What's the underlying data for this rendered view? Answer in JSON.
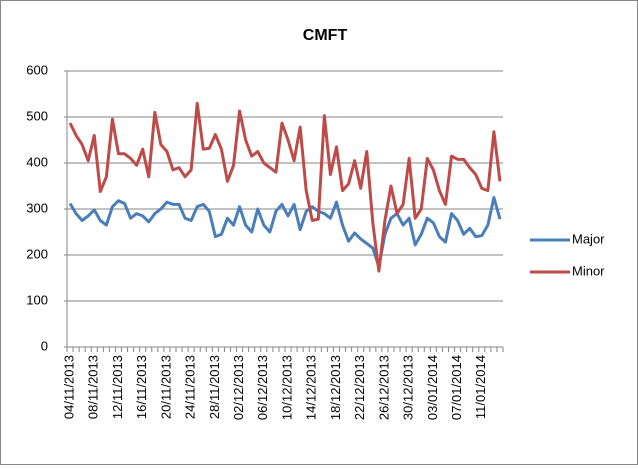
{
  "chart_data": {
    "type": "line",
    "title": "CMFT",
    "categories": [
      "04/11/2013",
      null,
      null,
      null,
      "08/11/2013",
      null,
      null,
      null,
      "12/11/2013",
      null,
      null,
      null,
      "16/11/2013",
      null,
      null,
      null,
      "20/11/2013",
      null,
      null,
      null,
      "24/11/2013",
      null,
      null,
      null,
      "28/11/2013",
      null,
      null,
      null,
      "02/12/2013",
      null,
      null,
      null,
      "06/12/2013",
      null,
      null,
      null,
      "10/12/2013",
      null,
      null,
      null,
      "14/12/2013",
      null,
      null,
      null,
      "18/12/2013",
      null,
      null,
      null,
      "22/12/2013",
      null,
      null,
      null,
      "26/12/2013",
      null,
      null,
      null,
      "30/12/2013",
      null,
      null,
      null,
      "03/01/2014",
      null,
      null,
      null,
      "07/01/2014",
      null,
      null,
      null,
      "11/01/2014",
      null,
      null,
      null
    ],
    "series": [
      {
        "name": "Major",
        "color": "#4a7ebb",
        "values": [
          312,
          290,
          275,
          285,
          298,
          275,
          265,
          305,
          318,
          312,
          280,
          290,
          285,
          272,
          290,
          300,
          315,
          310,
          310,
          280,
          275,
          305,
          310,
          295,
          240,
          245,
          280,
          265,
          305,
          265,
          250,
          300,
          265,
          250,
          295,
          310,
          285,
          310,
          255,
          295,
          305,
          295,
          290,
          280,
          315,
          265,
          230,
          248,
          235,
          225,
          215,
          175,
          245,
          280,
          290,
          265,
          280,
          222,
          245,
          280,
          270,
          240,
          228,
          290,
          275,
          245,
          258,
          240,
          242,
          265,
          325,
          278
        ]
      },
      {
        "name": "Minor",
        "color": "#be4b48",
        "values": [
          487,
          460,
          440,
          405,
          460,
          338,
          370,
          495,
          420,
          420,
          410,
          395,
          430,
          370,
          510,
          440,
          425,
          385,
          390,
          370,
          385,
          530,
          430,
          432,
          462,
          430,
          360,
          395,
          513,
          450,
          415,
          425,
          400,
          390,
          380,
          487,
          450,
          405,
          478,
          340,
          275,
          278,
          503,
          375,
          435,
          340,
          355,
          405,
          345,
          425,
          270,
          165,
          275,
          350,
          290,
          310,
          410,
          280,
          300,
          410,
          385,
          340,
          310,
          415,
          408,
          408,
          390,
          375,
          345,
          340,
          468,
          360
        ]
      }
    ],
    "ylim": [
      0,
      600
    ],
    "yticks": [
      0,
      100,
      200,
      300,
      400,
      500,
      600
    ],
    "grid": true,
    "legend": "right"
  }
}
